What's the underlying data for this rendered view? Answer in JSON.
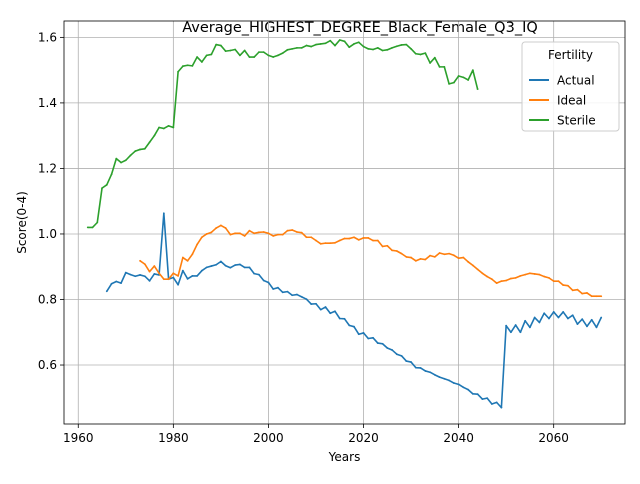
{
  "chart_data": {
    "type": "line",
    "title": "Average_HIGHEST_DEGREE_Black_Female_Q3_IQ",
    "xlabel": "Years",
    "ylabel": "Score(0-4)",
    "xlim": [
      1957,
      2075
    ],
    "ylim": [
      0.42,
      1.65
    ],
    "xticks": [
      1960,
      1980,
      2000,
      2020,
      2040,
      2060
    ],
    "yticks": [
      0.6,
      0.8,
      1.0,
      1.2,
      1.4,
      1.6
    ],
    "ytick_labels": [
      "0.6",
      "0.8",
      "1.0",
      "1.2",
      "1.4",
      "1.6"
    ],
    "grid": true,
    "legend": {
      "title": "Fertility",
      "placement": "top-right"
    },
    "series": [
      {
        "name": "Actual",
        "color": "#1f77b4",
        "points": [
          [
            1966,
            0.825
          ],
          [
            1967,
            0.848
          ],
          [
            1968,
            0.855
          ],
          [
            1969,
            0.85
          ],
          [
            1970,
            0.882
          ],
          [
            1971,
            0.876
          ],
          [
            1972,
            0.871
          ],
          [
            1973,
            0.875
          ],
          [
            1974,
            0.871
          ],
          [
            1975,
            0.857
          ],
          [
            1976,
            0.878
          ],
          [
            1977,
            0.875
          ],
          [
            1978,
            1.063
          ],
          [
            1979,
            0.862
          ],
          [
            1980,
            0.867
          ],
          [
            1981,
            0.845
          ],
          [
            1982,
            0.888
          ],
          [
            1983,
            0.863
          ],
          [
            1984,
            0.872
          ],
          [
            1985,
            0.872
          ],
          [
            1986,
            0.888
          ],
          [
            1987,
            0.898
          ],
          [
            1988,
            0.902
          ],
          [
            1989,
            0.906
          ],
          [
            1990,
            0.916
          ],
          [
            1991,
            0.903
          ],
          [
            1992,
            0.897
          ],
          [
            1993,
            0.905
          ],
          [
            1994,
            0.907
          ],
          [
            1995,
            0.898
          ],
          [
            1996,
            0.898
          ],
          [
            1997,
            0.879
          ],
          [
            1998,
            0.876
          ],
          [
            1999,
            0.858
          ],
          [
            2000,
            0.852
          ],
          [
            2001,
            0.832
          ],
          [
            2002,
            0.836
          ],
          [
            2003,
            0.822
          ],
          [
            2004,
            0.824
          ],
          [
            2005,
            0.813
          ],
          [
            2006,
            0.815
          ],
          [
            2007,
            0.808
          ],
          [
            2008,
            0.801
          ],
          [
            2009,
            0.786
          ],
          [
            2010,
            0.787
          ],
          [
            2011,
            0.769
          ],
          [
            2012,
            0.777
          ],
          [
            2013,
            0.758
          ],
          [
            2014,
            0.764
          ],
          [
            2015,
            0.742
          ],
          [
            2016,
            0.741
          ],
          [
            2017,
            0.721
          ],
          [
            2018,
            0.717
          ],
          [
            2019,
            0.694
          ],
          [
            2020,
            0.698
          ],
          [
            2021,
            0.681
          ],
          [
            2022,
            0.683
          ],
          [
            2023,
            0.667
          ],
          [
            2024,
            0.665
          ],
          [
            2025,
            0.652
          ],
          [
            2026,
            0.646
          ],
          [
            2027,
            0.633
          ],
          [
            2028,
            0.628
          ],
          [
            2029,
            0.612
          ],
          [
            2030,
            0.609
          ],
          [
            2031,
            0.592
          ],
          [
            2032,
            0.591
          ],
          [
            2033,
            0.582
          ],
          [
            2034,
            0.578
          ],
          [
            2035,
            0.57
          ],
          [
            2036,
            0.563
          ],
          [
            2037,
            0.558
          ],
          [
            2038,
            0.553
          ],
          [
            2039,
            0.545
          ],
          [
            2040,
            0.541
          ],
          [
            2041,
            0.532
          ],
          [
            2042,
            0.525
          ],
          [
            2043,
            0.512
          ],
          [
            2044,
            0.511
          ],
          [
            2045,
            0.496
          ],
          [
            2046,
            0.499
          ],
          [
            2047,
            0.481
          ],
          [
            2048,
            0.486
          ],
          [
            2049,
            0.47
          ],
          [
            2050,
            0.72
          ],
          [
            2051,
            0.7
          ],
          [
            2052,
            0.722
          ],
          [
            2053,
            0.7
          ],
          [
            2054,
            0.735
          ],
          [
            2055,
            0.715
          ],
          [
            2056,
            0.745
          ],
          [
            2057,
            0.73
          ],
          [
            2058,
            0.758
          ],
          [
            2059,
            0.742
          ],
          [
            2060,
            0.762
          ],
          [
            2061,
            0.745
          ],
          [
            2062,
            0.762
          ],
          [
            2063,
            0.742
          ],
          [
            2064,
            0.752
          ],
          [
            2065,
            0.725
          ],
          [
            2066,
            0.74
          ],
          [
            2067,
            0.718
          ],
          [
            2068,
            0.738
          ],
          [
            2069,
            0.715
          ],
          [
            2070,
            0.745
          ]
        ]
      },
      {
        "name": "Ideal",
        "color": "#ff7f0e",
        "points": [
          [
            1973,
            0.918
          ],
          [
            1974,
            0.908
          ],
          [
            1975,
            0.885
          ],
          [
            1976,
            0.902
          ],
          [
            1977,
            0.88
          ],
          [
            1978,
            0.862
          ],
          [
            1979,
            0.862
          ],
          [
            1980,
            0.88
          ],
          [
            1981,
            0.872
          ],
          [
            1982,
            0.928
          ],
          [
            1983,
            0.918
          ],
          [
            1984,
            0.938
          ],
          [
            1985,
            0.968
          ],
          [
            1986,
            0.99
          ],
          [
            1987,
            1.0
          ],
          [
            1988,
            1.005
          ],
          [
            1989,
            1.018
          ],
          [
            1990,
            1.026
          ],
          [
            1991,
            1.018
          ],
          [
            1992,
            0.998
          ],
          [
            1993,
            1.002
          ],
          [
            1994,
            1.002
          ],
          [
            1995,
            0.994
          ],
          [
            1996,
            1.01
          ],
          [
            1997,
            1.002
          ],
          [
            1998,
            1.005
          ],
          [
            1999,
            1.006
          ],
          [
            2000,
            1.002
          ],
          [
            2001,
            0.994
          ],
          [
            2002,
            0.998
          ],
          [
            2003,
            0.998
          ],
          [
            2004,
            1.01
          ],
          [
            2005,
            1.012
          ],
          [
            2006,
            1.006
          ],
          [
            2007,
            1.004
          ],
          [
            2008,
            0.99
          ],
          [
            2009,
            0.99
          ],
          [
            2010,
            0.98
          ],
          [
            2011,
            0.97
          ],
          [
            2012,
            0.972
          ],
          [
            2013,
            0.972
          ],
          [
            2014,
            0.973
          ],
          [
            2015,
            0.98
          ],
          [
            2016,
            0.986
          ],
          [
            2017,
            0.986
          ],
          [
            2018,
            0.99
          ],
          [
            2019,
            0.982
          ],
          [
            2020,
            0.988
          ],
          [
            2021,
            0.988
          ],
          [
            2022,
            0.98
          ],
          [
            2023,
            0.98
          ],
          [
            2024,
            0.962
          ],
          [
            2025,
            0.964
          ],
          [
            2026,
            0.95
          ],
          [
            2027,
            0.948
          ],
          [
            2028,
            0.94
          ],
          [
            2029,
            0.93
          ],
          [
            2030,
            0.928
          ],
          [
            2031,
            0.918
          ],
          [
            2032,
            0.924
          ],
          [
            2033,
            0.922
          ],
          [
            2034,
            0.934
          ],
          [
            2035,
            0.93
          ],
          [
            2036,
            0.942
          ],
          [
            2037,
            0.938
          ],
          [
            2038,
            0.94
          ],
          [
            2039,
            0.935
          ],
          [
            2040,
            0.926
          ],
          [
            2041,
            0.928
          ],
          [
            2042,
            0.915
          ],
          [
            2043,
            0.904
          ],
          [
            2044,
            0.892
          ],
          [
            2045,
            0.88
          ],
          [
            2046,
            0.87
          ],
          [
            2047,
            0.862
          ],
          [
            2048,
            0.85
          ],
          [
            2049,
            0.856
          ],
          [
            2050,
            0.858
          ],
          [
            2051,
            0.864
          ],
          [
            2052,
            0.866
          ],
          [
            2053,
            0.872
          ],
          [
            2054,
            0.876
          ],
          [
            2055,
            0.88
          ],
          [
            2056,
            0.878
          ],
          [
            2057,
            0.876
          ],
          [
            2058,
            0.87
          ],
          [
            2059,
            0.866
          ],
          [
            2060,
            0.856
          ],
          [
            2061,
            0.856
          ],
          [
            2062,
            0.844
          ],
          [
            2063,
            0.842
          ],
          [
            2064,
            0.828
          ],
          [
            2065,
            0.83
          ],
          [
            2066,
            0.818
          ],
          [
            2067,
            0.82
          ],
          [
            2068,
            0.81
          ],
          [
            2069,
            0.81
          ],
          [
            2070,
            0.81
          ]
        ]
      },
      {
        "name": "Sterile",
        "color": "#2ca02c",
        "points": [
          [
            1962,
            1.02
          ],
          [
            1963,
            1.02
          ],
          [
            1964,
            1.035
          ],
          [
            1965,
            1.14
          ],
          [
            1966,
            1.15
          ],
          [
            1967,
            1.182
          ],
          [
            1968,
            1.23
          ],
          [
            1969,
            1.218
          ],
          [
            1970,
            1.225
          ],
          [
            1971,
            1.24
          ],
          [
            1972,
            1.253
          ],
          [
            1973,
            1.258
          ],
          [
            1974,
            1.26
          ],
          [
            1975,
            1.28
          ],
          [
            1976,
            1.3
          ],
          [
            1977,
            1.325
          ],
          [
            1978,
            1.322
          ],
          [
            1979,
            1.33
          ],
          [
            1980,
            1.325
          ],
          [
            1981,
            1.495
          ],
          [
            1982,
            1.512
          ],
          [
            1983,
            1.515
          ],
          [
            1984,
            1.513
          ],
          [
            1985,
            1.54
          ],
          [
            1986,
            1.525
          ],
          [
            1987,
            1.545
          ],
          [
            1988,
            1.548
          ],
          [
            1989,
            1.578
          ],
          [
            1990,
            1.575
          ],
          [
            1991,
            1.558
          ],
          [
            1992,
            1.56
          ],
          [
            1993,
            1.563
          ],
          [
            1994,
            1.545
          ],
          [
            1995,
            1.56
          ],
          [
            1996,
            1.54
          ],
          [
            1997,
            1.54
          ],
          [
            1998,
            1.555
          ],
          [
            1999,
            1.555
          ],
          [
            2000,
            1.545
          ],
          [
            2001,
            1.54
          ],
          [
            2002,
            1.545
          ],
          [
            2003,
            1.552
          ],
          [
            2004,
            1.562
          ],
          [
            2005,
            1.565
          ],
          [
            2006,
            1.568
          ],
          [
            2007,
            1.568
          ],
          [
            2008,
            1.575
          ],
          [
            2009,
            1.572
          ],
          [
            2010,
            1.578
          ],
          [
            2011,
            1.58
          ],
          [
            2012,
            1.582
          ],
          [
            2013,
            1.59
          ],
          [
            2014,
            1.575
          ],
          [
            2015,
            1.592
          ],
          [
            2016,
            1.588
          ],
          [
            2017,
            1.57
          ],
          [
            2018,
            1.58
          ],
          [
            2019,
            1.585
          ],
          [
            2020,
            1.572
          ],
          [
            2021,
            1.565
          ],
          [
            2022,
            1.563
          ],
          [
            2023,
            1.568
          ],
          [
            2024,
            1.56
          ],
          [
            2025,
            1.562
          ],
          [
            2026,
            1.568
          ],
          [
            2027,
            1.573
          ],
          [
            2028,
            1.577
          ],
          [
            2029,
            1.578
          ],
          [
            2030,
            1.565
          ],
          [
            2031,
            1.55
          ],
          [
            2032,
            1.548
          ],
          [
            2033,
            1.552
          ],
          [
            2034,
            1.522
          ],
          [
            2035,
            1.538
          ],
          [
            2036,
            1.51
          ],
          [
            2037,
            1.51
          ],
          [
            2038,
            1.458
          ],
          [
            2039,
            1.462
          ],
          [
            2040,
            1.482
          ],
          [
            2041,
            1.478
          ],
          [
            2042,
            1.47
          ],
          [
            2043,
            1.5
          ],
          [
            2044,
            1.442
          ]
        ]
      }
    ]
  }
}
